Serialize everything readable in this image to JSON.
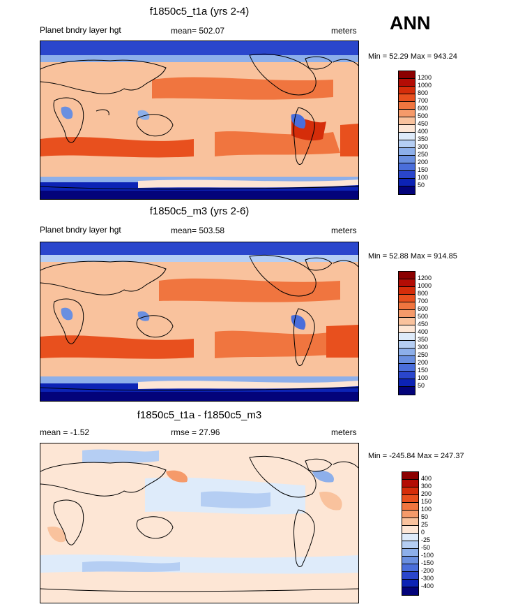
{
  "annual_label": "ANN",
  "panels": [
    {
      "title": "f1850c5_t1a (yrs 2-4)",
      "left_label": "Planet bndry layer hgt",
      "center_label": "mean= 502.07",
      "right_label": "meters",
      "minmax": "Min =  52.29 Max = 943.24",
      "colorbar": {
        "labels": [
          "1200",
          "1000",
          "800",
          "700",
          "600",
          "500",
          "450",
          "400",
          "350",
          "300",
          "250",
          "200",
          "150",
          "100",
          "50"
        ],
        "colors": [
          "#8b0000",
          "#b30d05",
          "#d52d0a",
          "#e8501e",
          "#f0753f",
          "#f59a6a",
          "#f9c29d",
          "#fde6d5",
          "#deebfa",
          "#b5cef3",
          "#8dafea",
          "#6a8fe0",
          "#4a6edb",
          "#2a46cc",
          "#0c23b5",
          "#03037a"
        ]
      }
    },
    {
      "title": "f1850c5_m3 (yrs 2-6)",
      "left_label": "Planet bndry layer hgt",
      "center_label": "mean= 503.58",
      "right_label": "meters",
      "minmax": "Min =  52.88 Max = 914.85",
      "colorbar": {
        "labels": [
          "1200",
          "1000",
          "800",
          "700",
          "600",
          "500",
          "450",
          "400",
          "350",
          "300",
          "250",
          "200",
          "150",
          "100",
          "50"
        ],
        "colors": [
          "#8b0000",
          "#b30d05",
          "#d52d0a",
          "#e8501e",
          "#f0753f",
          "#f59a6a",
          "#f9c29d",
          "#fde6d5",
          "#deebfa",
          "#b5cef3",
          "#8dafea",
          "#6a8fe0",
          "#4a6edb",
          "#2a46cc",
          "#0c23b5",
          "#03037a"
        ]
      }
    },
    {
      "title": "f1850c5_t1a - f1850c5_m3",
      "left_label": "mean =  -1.52",
      "center_label": "rmse =  27.96",
      "right_label": "meters",
      "minmax": "Min = -245.84 Max = 247.37",
      "colorbar": {
        "labels": [
          "400",
          "300",
          "200",
          "150",
          "100",
          "50",
          "25",
          "0",
          "-25",
          "-50",
          "-100",
          "-150",
          "-200",
          "-300",
          "-400"
        ],
        "colors": [
          "#8b0000",
          "#b30d05",
          "#d52d0a",
          "#e8501e",
          "#f0753f",
          "#f59a6a",
          "#f9c29d",
          "#fde6d5",
          "#deebfa",
          "#b5cef3",
          "#8dafea",
          "#6a8fe0",
          "#4a6edb",
          "#2a46cc",
          "#0c23b5",
          "#03037a"
        ]
      }
    }
  ]
}
